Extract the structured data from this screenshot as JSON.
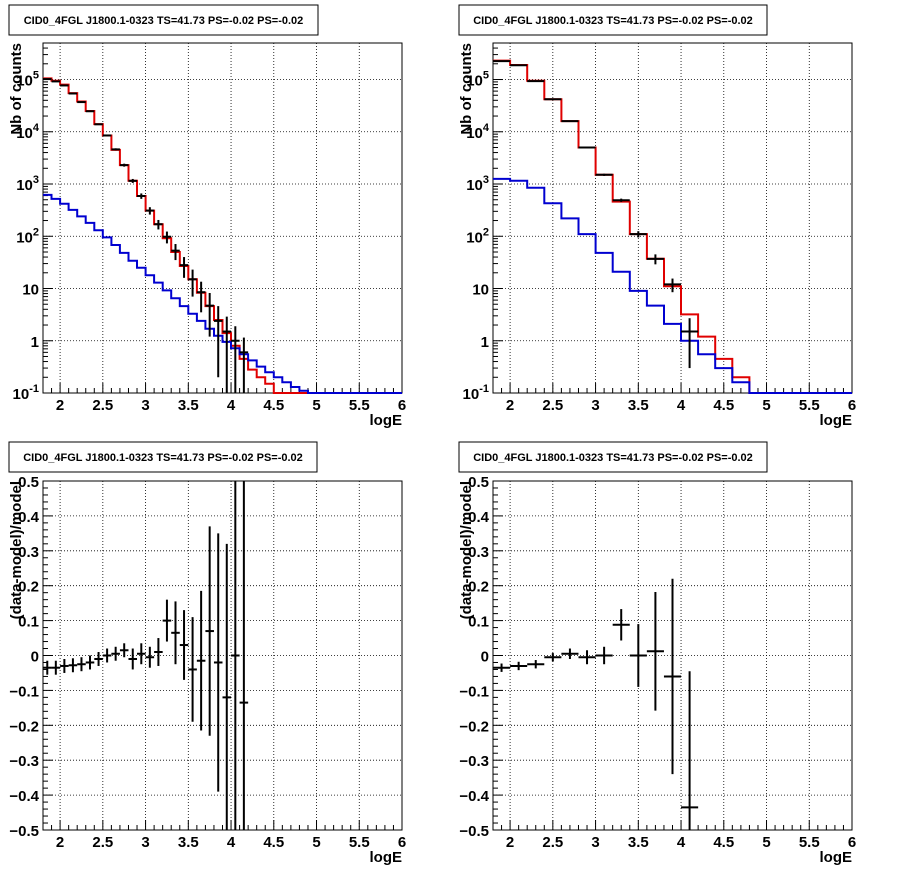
{
  "chart_data": [
    {
      "type": "line",
      "title": "CID0_4FGL J1800.1-0323 TS=41.73 PS=-0.02 PS=-0.02",
      "xlabel": "logE",
      "ylabel": "Nb of counts",
      "log_y": true,
      "xlim": [
        1.8,
        6.0
      ],
      "ylim": [
        0.1,
        500000
      ],
      "x_ticks": [
        "2",
        "2.5",
        "3",
        "3.5",
        "4",
        "4.5",
        "5",
        "5.5",
        "6"
      ],
      "y_ticks": [
        "10^-1",
        "1",
        "10",
        "10^2",
        "10^3",
        "10^4",
        "10^5"
      ],
      "grid": true,
      "bin_edges": [
        1.8,
        1.9,
        2.0,
        2.1,
        2.2,
        2.3,
        2.4,
        2.5,
        2.6,
        2.7,
        2.8,
        2.9,
        3.0,
        3.1,
        3.2,
        3.3,
        3.4,
        3.5,
        3.6,
        3.7,
        3.8,
        3.9,
        4.0,
        4.1,
        4.2,
        4.3,
        4.4,
        4.5,
        4.6,
        4.7,
        4.8,
        4.9,
        5.0,
        5.1,
        5.2,
        5.3,
        5.4,
        5.5,
        5.6,
        5.7,
        5.8,
        5.9,
        6.0
      ],
      "series": [
        {
          "color": "#e00000",
          "style": "step",
          "values": [
            105000,
            95000,
            80000,
            55000,
            38000,
            25000,
            14000,
            8500,
            4500,
            2300,
            1150,
            590,
            310,
            170,
            92,
            50,
            27,
            15,
            8.3,
            4.6,
            2.5,
            1.4,
            0.8,
            0.45,
            0.28,
            0.2,
            0.15,
            0.1,
            0.1,
            0.1,
            0.1,
            0.1,
            0.1,
            0.1,
            0.1,
            0.1,
            0.1,
            0.1,
            0.1,
            0.1,
            0.1,
            0.1
          ]
        },
        {
          "color": "#0000d0",
          "style": "step",
          "values": [
            620,
            520,
            420,
            320,
            240,
            180,
            130,
            95,
            68,
            48,
            34,
            25,
            18,
            13,
            9.2,
            6.5,
            4.6,
            3.3,
            2.4,
            1.7,
            1.25,
            0.95,
            0.72,
            0.55,
            0.42,
            0.32,
            0.25,
            0.2,
            0.16,
            0.13,
            0.11,
            0.1,
            0.1,
            0.1,
            0.1,
            0.1,
            0.1,
            0.1,
            0.1,
            0.1,
            0.1,
            0.1
          ]
        },
        {
          "color": "#000000",
          "style": "errorbar",
          "x": [
            1.85,
            1.95,
            2.05,
            2.15,
            2.25,
            2.35,
            2.45,
            2.55,
            2.65,
            2.75,
            2.85,
            2.95,
            3.05,
            3.15,
            3.25,
            3.35,
            3.45,
            3.55,
            3.65,
            3.75,
            3.85,
            3.95,
            4.05,
            4.15
          ],
          "y": [
            102000,
            92000,
            77000,
            54000,
            37000,
            24700,
            13900,
            8500,
            4600,
            2300,
            1150,
            590,
            310,
            170,
            98,
            53,
            28,
            15,
            8.5,
            4.7,
            2.4,
            1.5,
            1,
            0.6
          ],
          "err": [
            1000,
            900,
            800,
            700,
            600,
            500,
            400,
            300,
            220,
            150,
            100,
            70,
            50,
            35,
            25,
            18,
            12,
            8,
            5,
            3.5,
            2.2,
            1.4,
            0.9,
            0.55
          ]
        }
      ]
    },
    {
      "type": "line",
      "title": "CID0_4FGL J1800.1-0323 TS=41.73 PS=-0.02 PS=-0.02",
      "xlabel": "logE",
      "ylabel": "Nb of counts",
      "log_y": true,
      "xlim": [
        1.8,
        6.0
      ],
      "ylim": [
        0.1,
        500000
      ],
      "x_ticks": [
        "2",
        "2.5",
        "3",
        "3.5",
        "4",
        "4.5",
        "5",
        "5.5",
        "6"
      ],
      "y_ticks": [
        "10^-1",
        "1",
        "10",
        "10^2",
        "10^3",
        "10^4",
        "10^5"
      ],
      "grid": true,
      "bin_edges": [
        1.8,
        2.0,
        2.2,
        2.4,
        2.6,
        2.8,
        3.0,
        3.2,
        3.4,
        3.6,
        3.8,
        4.0,
        4.2,
        4.4,
        4.6,
        4.8,
        5.0,
        5.2,
        5.4,
        5.6,
        5.8,
        6.0
      ],
      "series": [
        {
          "color": "#e00000",
          "style": "step",
          "values": [
            230000,
            190000,
            95000,
            42000,
            16000,
            5000,
            1500,
            460,
            110,
            37,
            11,
            3.2,
            1.2,
            0.45,
            0.2,
            0.1,
            0.1,
            0.1,
            0.1,
            0.1,
            0.1
          ]
        },
        {
          "color": "#0000d0",
          "style": "step",
          "values": [
            1250,
            1150,
            850,
            430,
            220,
            110,
            48,
            21,
            9,
            4.7,
            2.1,
            1.0,
            0.55,
            0.3,
            0.16,
            0.1,
            0.1,
            0.1,
            0.1,
            0.1,
            0.1
          ]
        },
        {
          "color": "#000000",
          "style": "errorbar",
          "x": [
            1.9,
            2.1,
            2.3,
            2.5,
            2.7,
            2.9,
            3.1,
            3.3,
            3.5,
            3.7,
            3.9,
            4.1
          ],
          "y": [
            225000,
            188000,
            93000,
            42000,
            16000,
            5000,
            1500,
            490,
            110,
            37,
            12,
            1.5
          ],
          "err": [
            2000,
            1500,
            1000,
            600,
            300,
            150,
            70,
            35,
            15,
            8,
            3.5,
            1.2
          ]
        }
      ]
    },
    {
      "type": "scatter",
      "title": "CID0_4FGL J1800.1-0323 TS=41.73 PS=-0.02 PS=-0.02",
      "xlabel": "logE",
      "ylabel": "(data-model)/model",
      "xlim": [
        1.8,
        6.0
      ],
      "ylim": [
        -0.5,
        0.5
      ],
      "x_ticks": [
        "2",
        "2.5",
        "3",
        "3.5",
        "4",
        "4.5",
        "5",
        "5.5",
        "6"
      ],
      "y_ticks": [
        "−0.5",
        "−0.4",
        "−0.3",
        "−0.2",
        "−0.1",
        "0",
        "0.1",
        "0.2",
        "0.3",
        "0.4",
        "0.5"
      ],
      "grid": true,
      "bin_halfwidth": 0.05,
      "x": [
        1.85,
        1.95,
        2.05,
        2.15,
        2.25,
        2.35,
        2.45,
        2.55,
        2.65,
        2.75,
        2.85,
        2.95,
        3.05,
        3.15,
        3.25,
        3.35,
        3.45,
        3.55,
        3.65,
        3.75,
        3.85,
        3.95,
        4.05,
        4.15
      ],
      "y": [
        -0.035,
        -0.035,
        -0.03,
        -0.028,
        -0.025,
        -0.02,
        -0.01,
        0,
        0.005,
        0.015,
        -0.01,
        0.005,
        -0.005,
        0.01,
        0.1,
        0.065,
        0.03,
        -0.04,
        -0.015,
        0.07,
        -0.02,
        -0.12,
        0,
        -0.135
      ],
      "err": [
        0.02,
        0.02,
        0.02,
        0.02,
        0.02,
        0.02,
        0.02,
        0.02,
        0.02,
        0.02,
        0.03,
        0.03,
        0.03,
        0.04,
        0.06,
        0.09,
        0.1,
        0.15,
        0.2,
        0.3,
        0.37,
        0.44,
        0.6,
        0.8
      ]
    },
    {
      "type": "scatter",
      "title": "CID0_4FGL J1800.1-0323 TS=41.73 PS=-0.02 PS=-0.02",
      "xlabel": "logE",
      "ylabel": "(data-model)/model",
      "xlim": [
        1.8,
        6.0
      ],
      "ylim": [
        -0.5,
        0.5
      ],
      "x_ticks": [
        "2",
        "2.5",
        "3",
        "3.5",
        "4",
        "4.5",
        "5",
        "5.5",
        "6"
      ],
      "y_ticks": [
        "−0.5",
        "−0.4",
        "−0.3",
        "−0.2",
        "−0.1",
        "0",
        "0.1",
        "0.2",
        "0.3",
        "0.4",
        "0.5"
      ],
      "grid": true,
      "bin_halfwidth": 0.1,
      "x": [
        1.9,
        2.1,
        2.3,
        2.5,
        2.7,
        2.9,
        3.1,
        3.3,
        3.5,
        3.7,
        3.9,
        4.1
      ],
      "y": [
        -0.035,
        -0.03,
        -0.025,
        -0.005,
        0.005,
        -0.005,
        0,
        0.088,
        0,
        0.012,
        -0.06,
        -0.435
      ],
      "err": [
        0.012,
        0.012,
        0.012,
        0.012,
        0.015,
        0.02,
        0.025,
        0.045,
        0.09,
        0.17,
        0.28,
        0.39
      ]
    }
  ]
}
